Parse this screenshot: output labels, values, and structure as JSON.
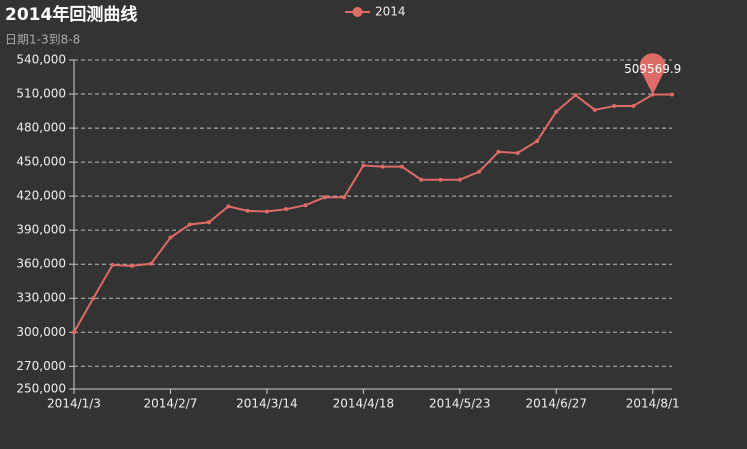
{
  "chart_data": {
    "type": "line",
    "title": "2014年回测曲线",
    "subtitle": "日期1-3到8-8",
    "categories": [
      "2014/1/3",
      null,
      null,
      null,
      null,
      "2014/2/7",
      null,
      null,
      null,
      null,
      "2014/3/14",
      null,
      null,
      null,
      null,
      "2014/4/18",
      null,
      null,
      null,
      null,
      "2014/5/23",
      null,
      null,
      null,
      null,
      "2014/6/27",
      null,
      null,
      null,
      null,
      "2014/8/1",
      null
    ],
    "series": [
      {
        "name": "2014",
        "color": "#dd6b66",
        "values": [
          300000,
          330000,
          359400,
          358500,
          360500,
          383500,
          395000,
          397000,
          411000,
          407000,
          406500,
          408500,
          412000,
          419000,
          419000,
          447000,
          446000,
          446000,
          434500,
          434500,
          434500,
          441500,
          459000,
          458000,
          468500,
          494500,
          509000,
          496000,
          499500,
          499500,
          509569.9,
          509569.9
        ]
      }
    ],
    "ylim": [
      250000,
      540000
    ],
    "yticks": [
      {
        "value": 250000,
        "label": "250,000"
      },
      {
        "value": 270000,
        "label": "270,000"
      },
      {
        "value": 300000,
        "label": "300,000"
      },
      {
        "value": 330000,
        "label": "330,000"
      },
      {
        "value": 360000,
        "label": "360,000"
      },
      {
        "value": 390000,
        "label": "390,000"
      },
      {
        "value": 420000,
        "label": "420,000"
      },
      {
        "value": 450000,
        "label": "450,000"
      },
      {
        "value": 480000,
        "label": "480,000"
      },
      {
        "value": 510000,
        "label": "510,000"
      },
      {
        "value": 540000,
        "label": "540,000"
      }
    ],
    "grid": true
  }
}
